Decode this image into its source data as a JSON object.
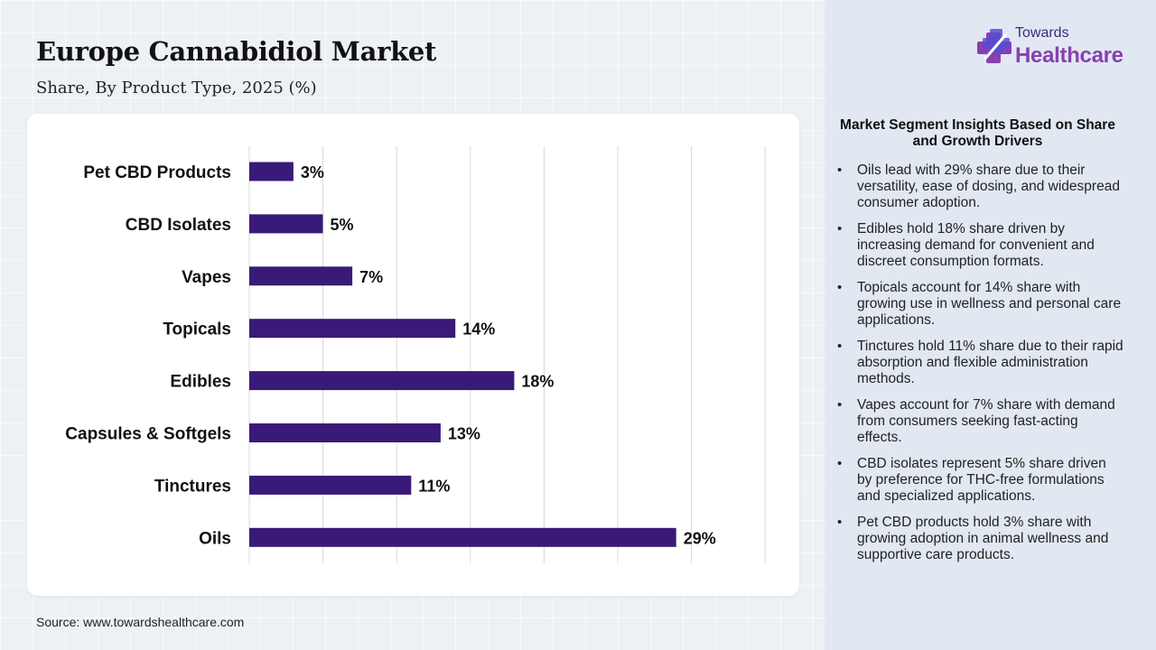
{
  "header": {
    "title": "Europe Cannabidiol Market",
    "subtitle": "Share, By Product Type, 2025 (%)"
  },
  "logo": {
    "small_text": "Towards",
    "big_text": "Healthcare",
    "icon": "cross-plus-logo-icon"
  },
  "colors": {
    "bar": "#3a1a78",
    "grid": "#d9d9d9",
    "logo_purple": "#8a3fb0",
    "logo_blue": "#5a4bd1"
  },
  "chart_data": {
    "type": "bar",
    "orientation": "horizontal",
    "title": "",
    "xlabel": "",
    "ylabel": "",
    "categories": [
      "Pet CBD Products",
      "CBD Isolates",
      "Vapes",
      "Topicals",
      "Edibles",
      "Capsules & Softgels",
      "Tinctures",
      "Oils"
    ],
    "values": [
      3,
      5,
      7,
      14,
      18,
      13,
      11,
      29
    ],
    "value_labels": [
      "3%",
      "5%",
      "7%",
      "14%",
      "18%",
      "13%",
      "11%",
      "29%"
    ],
    "xlim": [
      0,
      35
    ],
    "grid": true,
    "legend": "none"
  },
  "insights": {
    "title": "Market Segment Insights Based on Share and Growth Drivers",
    "items": [
      "Oils lead with 29% share due to their versatility, ease of dosing, and widespread consumer adoption.",
      "Edibles hold 18% share driven by increasing demand for convenient and discreet consumption formats.",
      "Topicals account for 14% share with growing use in wellness and personal care applications.",
      "Tinctures hold 11% share due to their rapid absorption and flexible administration methods.",
      "Vapes account for 7% share with demand from consumers seeking fast-acting effects.",
      "CBD isolates represent 5% share driven by preference for THC-free formulations and specialized applications.",
      "Pet CBD products hold 3% share with growing adoption in animal wellness and supportive care products."
    ]
  },
  "footer": {
    "source": "Source: www.towardshealthcare.com"
  }
}
